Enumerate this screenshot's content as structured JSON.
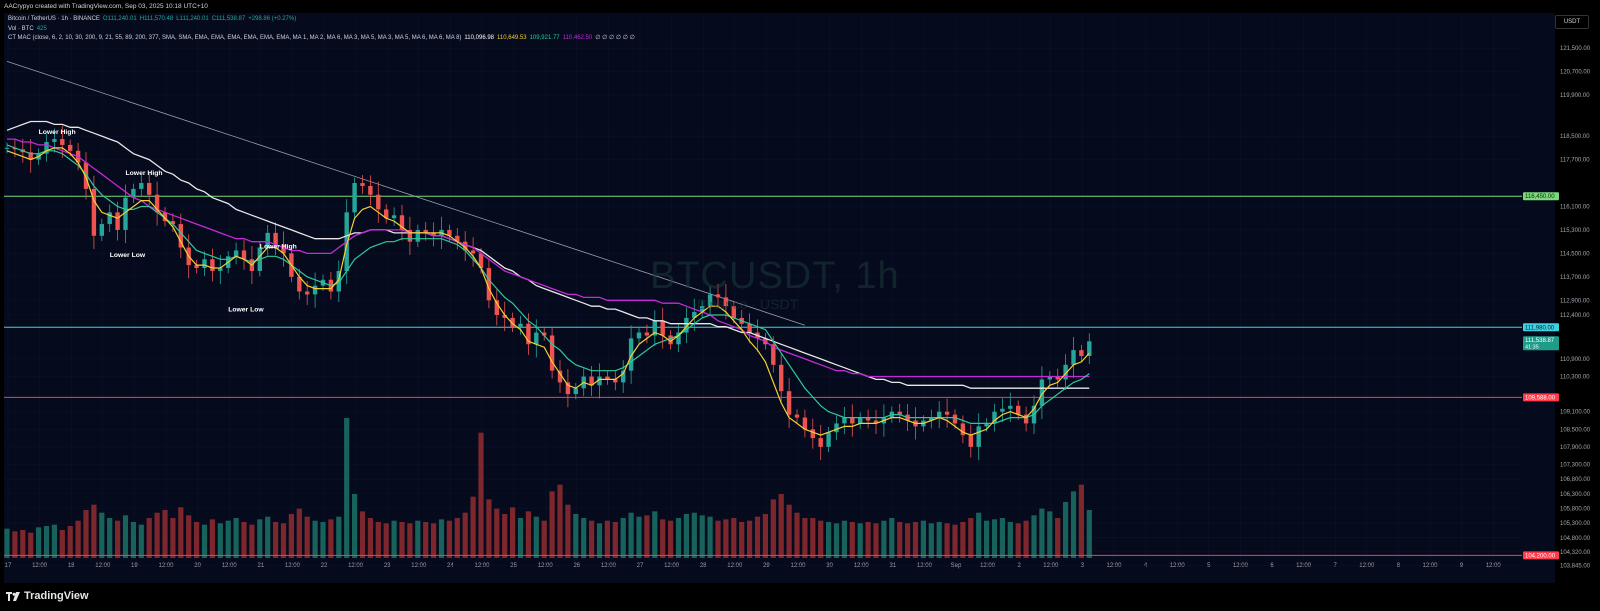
{
  "header": {
    "credit": "AACrypyo created with TradingView.com, Sep 03, 2025 10:18 UTC+10"
  },
  "legend": {
    "symbol": "Bitcoin / TetherUS · 1h · BINANCE",
    "o": "O111,240.01",
    "h": "H111,570.48",
    "l": "L111,240.01",
    "c": "C111,538.87",
    "chg": "+298.86 (+0.27%)",
    "vol_label": "Vol · BTC",
    "vol_value": "425",
    "mac_label": "CT MAC (close, 6, 2, 10, 30, 200, 9, 21, 55, 89, 200, 377, SMA, SMA, EMA, EMA, EMA, EMA, EMA, EMA, MA 1, MA 2, MA 6, MA 3, MA 5, MA 3, MA 5, MA 6, MA 6, MA 8)",
    "mac_v1": "110,096.98",
    "mac_v2": "110,649.53",
    "mac_v3": "109,921.77",
    "mac_v4": "110,462.50",
    "mac_dots": "∅ ∅ ∅ ∅ ∅ ∅"
  },
  "watermark": {
    "symbol": "BTCUSDT, 1h",
    "sub": "Binance · USDT"
  },
  "axis": {
    "currency": "USDT"
  },
  "footer": {
    "logo": "TradingView"
  },
  "colors": {
    "background": "#050a1c",
    "ema_yellow": "#f5d031",
    "ema_teal": "#2ec99a",
    "ma_purple": "#c52ad8",
    "ma_white": "#e8e8e8",
    "up": "#26a69a",
    "down": "#ef5350",
    "resistance_green": "#7bd97b",
    "support_cyan": "#3fd1e0",
    "support_red": "#ff3b4a"
  },
  "chart_data": {
    "type": "candlestick",
    "title": "",
    "y_ticks": [
      121500,
      120700,
      119900,
      118500,
      117700,
      116100,
      115300,
      114500,
      113700,
      112900,
      112400,
      110900,
      110300,
      109100,
      108500,
      107900,
      107300,
      106800,
      106300,
      105800,
      105300,
      104800,
      104320,
      103845
    ],
    "ylim": [
      103700,
      122700
    ],
    "x_ticks": [
      "17",
      "12:00",
      "18",
      "12:00",
      "19",
      "12:00",
      "20",
      "12:00",
      "21",
      "12:00",
      "22",
      "12:00",
      "23",
      "12:00",
      "24",
      "12:00",
      "25",
      "12:00",
      "26",
      "12:00",
      "27",
      "12:00",
      "28",
      "12:00",
      "29",
      "12:00",
      "30",
      "12:00",
      "31",
      "12:00",
      "Sep",
      "12:00",
      "2",
      "12:00",
      "3",
      "12:00",
      "4",
      "12:00",
      "5",
      "12:00",
      "6",
      "12:00",
      "7",
      "12:00",
      "8",
      "12:00",
      "9",
      "12:00"
    ],
    "horizontal_levels": [
      {
        "price": 116450,
        "color": "#7bd97b"
      },
      {
        "price": 111980,
        "color": "#3fd1e0"
      },
      {
        "price": 109588,
        "color": "#ff3b4a"
      },
      {
        "price": 104200,
        "color": "#ff3b4a"
      }
    ],
    "price_tags": [
      {
        "label": "116,450.00",
        "price": 116450,
        "bg": "#7bd97b",
        "fg": "#0a2a0a"
      },
      {
        "label": "111,980.00",
        "price": 111980,
        "bg": "#3fd1e0",
        "fg": "#04222a"
      },
      {
        "label": "111,538.87",
        "price": 111539,
        "bg": "#1e9c8a",
        "fg": "#ffffff",
        "sub": "41:35"
      },
      {
        "label": "109,588.00",
        "price": 109588,
        "bg": "#ff3b4a",
        "fg": "#ffffff"
      },
      {
        "label": "104,200.00",
        "price": 104200,
        "bg": "#ff3b4a",
        "fg": "#ffffff"
      }
    ],
    "annotations": [
      {
        "text": "Lower High",
        "t": 4,
        "price": 118570
      },
      {
        "text": "Lower High",
        "t": 15,
        "price": 117170
      },
      {
        "text": "Lower Low",
        "t": 13,
        "price": 114380
      },
      {
        "text": "Lower High",
        "t": 32,
        "price": 114670
      },
      {
        "text": "Lower Low",
        "t": 28,
        "price": 112520
      }
    ],
    "trendline": {
      "from": {
        "t": 0,
        "price": 121050
      },
      "to": {
        "t": 101,
        "price": 112050
      }
    },
    "price_series": [
      118100,
      118050,
      117950,
      117700,
      117900,
      118300,
      118400,
      118200,
      118000,
      117600,
      116700,
      115100,
      115500,
      115900,
      115300,
      116400,
      116700,
      116900,
      116500,
      115900,
      115600,
      115500,
      114700,
      114100,
      114000,
      114300,
      113900,
      114000,
      114400,
      114600,
      114300,
      113900,
      114700,
      115200,
      114800,
      114500,
      113700,
      113200,
      113100,
      113400,
      113600,
      113200,
      113900,
      115900,
      116900,
      116800,
      116500,
      116000,
      115700,
      115800,
      115300,
      114900,
      115300,
      115200,
      115100,
      115300,
      115100,
      114900,
      114600,
      114500,
      114000,
      112900,
      112400,
      112300,
      112000,
      112100,
      111400,
      111800,
      111700,
      110500,
      110100,
      109700,
      109900,
      110300,
      110000,
      110300,
      110200,
      110100,
      110500,
      111600,
      111800,
      111700,
      112200,
      111700,
      111400,
      111800,
      112300,
      112500,
      112700,
      113100,
      113000,
      112700,
      112300,
      112100,
      111800,
      111600,
      111400,
      110700,
      109800,
      109000,
      108900,
      108500,
      108200,
      107900,
      108400,
      108700,
      108900,
      108700,
      108900,
      108800,
      108700,
      108900,
      109100,
      109000,
      108800,
      108600,
      108800,
      108900,
      109100,
      109000,
      108700,
      108300,
      107900,
      108600,
      108700,
      109100,
      109200,
      109300,
      109000,
      108700,
      109300,
      110200,
      110300,
      110200,
      110700,
      111200,
      111000,
      111500
    ],
    "volumes": [
      22,
      20,
      21,
      19,
      23,
      24,
      25,
      21,
      24,
      28,
      36,
      40,
      34,
      30,
      28,
      32,
      27,
      25,
      30,
      34,
      36,
      30,
      38,
      32,
      27,
      25,
      29,
      26,
      28,
      30,
      27,
      25,
      29,
      31,
      27,
      26,
      33,
      37,
      31,
      28,
      27,
      29,
      31,
      105,
      48,
      35,
      30,
      27,
      26,
      28,
      27,
      26,
      28,
      27,
      26,
      29,
      28,
      30,
      34,
      46,
      94,
      44,
      37,
      33,
      38,
      30,
      35,
      31,
      28,
      50,
      55,
      40,
      33,
      30,
      28,
      26,
      28,
      27,
      30,
      34,
      31,
      32,
      35,
      29,
      28,
      30,
      33,
      34,
      32,
      31,
      28,
      29,
      30,
      27,
      28,
      31,
      33,
      44,
      48,
      40,
      34,
      30,
      30,
      28,
      27,
      26,
      28,
      27,
      26,
      27,
      26,
      28,
      30,
      27,
      26,
      27,
      28,
      26,
      27,
      26,
      25,
      27,
      30,
      34,
      28,
      29,
      30,
      27,
      26,
      28,
      32,
      37,
      35,
      30,
      42,
      50,
      55,
      36
    ],
    "ma_white": [
      118700,
      118800,
      118900,
      119000,
      119000,
      119000,
      118900,
      118900,
      118800,
      118800,
      118700,
      118600,
      118500,
      118400,
      118300,
      118100,
      117900,
      117800,
      117700,
      117500,
      117300,
      117200,
      117000,
      116900,
      116700,
      116600,
      116400,
      116300,
      116200,
      116000,
      115900,
      115800,
      115700,
      115600,
      115500,
      115400,
      115300,
      115200,
      115100,
      115000,
      115000,
      115000,
      115000,
      115100,
      115200,
      115200,
      115300,
      115300,
      115300,
      115200,
      115200,
      115200,
      115200,
      115200,
      115100,
      115100,
      115000,
      114900,
      114800,
      114700,
      114600,
      114400,
      114200,
      114000,
      113900,
      113700,
      113600,
      113400,
      113300,
      113200,
      113100,
      113000,
      112900,
      112800,
      112700,
      112700,
      112600,
      112600,
      112500,
      112400,
      112300,
      112300,
      112200,
      112200,
      112100,
      112100,
      112100,
      112100,
      112100,
      112100,
      112000,
      112000,
      111900,
      111800,
      111800,
      111700,
      111600,
      111500,
      111400,
      111300,
      111200,
      111100,
      111000,
      110900,
      110800,
      110700,
      110600,
      110500,
      110400,
      110300,
      110200,
      110200,
      110100,
      110100,
      110000,
      110000,
      110000,
      110000,
      110000,
      110000,
      110000,
      110000,
      109900,
      109900,
      109900,
      109900,
      109900,
      109900,
      109900,
      109900,
      109900,
      109900,
      109900,
      109900,
      109900,
      109900,
      109900,
      109900
    ],
    "ma_purple": [
      118400,
      118400,
      118300,
      118300,
      118200,
      118200,
      118100,
      118000,
      117900,
      117800,
      117600,
      117400,
      117200,
      117000,
      116800,
      116600,
      116400,
      116300,
      116100,
      116000,
      115900,
      115800,
      115700,
      115600,
      115500,
      115400,
      115300,
      115200,
      115100,
      115000,
      115000,
      114900,
      114900,
      114900,
      114800,
      114700,
      114600,
      114600,
      114500,
      114500,
      114500,
      114500,
      114700,
      114900,
      115100,
      115200,
      115300,
      115300,
      115300,
      115300,
      115300,
      115200,
      115200,
      115200,
      115100,
      115100,
      115000,
      114900,
      114800,
      114700,
      114500,
      114300,
      114100,
      113900,
      113800,
      113700,
      113600,
      113500,
      113400,
      113300,
      113200,
      113100,
      113100,
      113000,
      113000,
      113000,
      112900,
      112900,
      112900,
      112900,
      112900,
      112900,
      112900,
      112800,
      112800,
      112800,
      112700,
      112600,
      112500,
      112400,
      112200,
      112100,
      112000,
      111900,
      111700,
      111600,
      111500,
      111300,
      111200,
      111100,
      111000,
      110900,
      110800,
      110700,
      110600,
      110500,
      110500,
      110400,
      110400,
      110300,
      110300,
      110300,
      110300,
      110300,
      110300,
      110300,
      110300,
      110300,
      110300,
      110300,
      110300,
      110300,
      110300,
      110300,
      110300,
      110300,
      110300,
      110300,
      110300,
      110300,
      110300,
      110300,
      110300,
      110300,
      110300,
      110300,
      110300,
      110300
    ],
    "ema_teal": [
      118200,
      118100,
      118000,
      117900,
      117900,
      118000,
      118000,
      117900,
      117700,
      117500,
      117200,
      116800,
      116500,
      116300,
      116100,
      116000,
      116000,
      116100,
      116100,
      115900,
      115700,
      115500,
      115200,
      114900,
      114600,
      114500,
      114400,
      114300,
      114300,
      114400,
      114300,
      114200,
      114300,
      114400,
      114400,
      114300,
      114100,
      113900,
      113700,
      113600,
      113500,
      113400,
      113500,
      113900,
      114300,
      114500,
      114700,
      114800,
      114900,
      114900,
      115000,
      115000,
      115000,
      115000,
      115000,
      115000,
      114900,
      114800,
      114600,
      114300,
      114000,
      113600,
      113300,
      113000,
      112800,
      112500,
      112200,
      112000,
      111700,
      111400,
      111200,
      110900,
      110700,
      110600,
      110500,
      110500,
      110500,
      110500,
      110600,
      110800,
      111000,
      111200,
      111400,
      111500,
      111600,
      111700,
      111900,
      112100,
      112300,
      112400,
      112400,
      112400,
      112300,
      112200,
      112100,
      112000,
      111900,
      111500,
      111100,
      110700,
      110300,
      109900,
      109600,
      109300,
      109100,
      109000,
      108900,
      108900,
      108900,
      108900,
      108900,
      108900,
      109000,
      109000,
      108900,
      108900,
      108900,
      108900,
      108900,
      108900,
      108900,
      108800,
      108700,
      108700,
      108700,
      108700,
      108800,
      108900,
      108900,
      108900,
      109000,
      109300,
      109500,
      109700,
      109900,
      110100,
      110200,
      110400
    ],
    "ema_yellow": [
      118000,
      117900,
      117800,
      117700,
      117800,
      118000,
      118100,
      118100,
      117900,
      117600,
      117100,
      116300,
      115900,
      115800,
      115700,
      115900,
      116100,
      116300,
      116300,
      116000,
      115700,
      115400,
      114900,
      114400,
      114100,
      114100,
      114000,
      114000,
      114200,
      114400,
      114300,
      114100,
      114400,
      114700,
      114700,
      114500,
      114100,
      113700,
      113400,
      113300,
      113300,
      113300,
      113600,
      114800,
      115700,
      116000,
      116100,
      115900,
      115700,
      115600,
      115400,
      115200,
      115200,
      115200,
      115200,
      115200,
      115100,
      114900,
      114700,
      114400,
      114000,
      113300,
      112800,
      112400,
      112100,
      111900,
      111500,
      111400,
      111300,
      110800,
      110400,
      110000,
      109900,
      110100,
      110000,
      110200,
      110200,
      110200,
      110400,
      111000,
      111400,
      111600,
      111800,
      111700,
      111500,
      111700,
      112000,
      112300,
      112500,
      112700,
      112700,
      112500,
      112200,
      111900,
      111500,
      111200,
      110800,
      110100,
      109400,
      108900,
      108700,
      108500,
      108400,
      108300,
      108400,
      108500,
      108600,
      108600,
      108700,
      108700,
      108700,
      108800,
      108900,
      108900,
      108800,
      108700,
      108700,
      108800,
      108900,
      108800,
      108600,
      108400,
      108300,
      108400,
      108500,
      108800,
      109000,
      109100,
      109000,
      108900,
      109200,
      109700,
      110000,
      110100,
      110400,
      110700,
      110800,
      111100
    ]
  }
}
